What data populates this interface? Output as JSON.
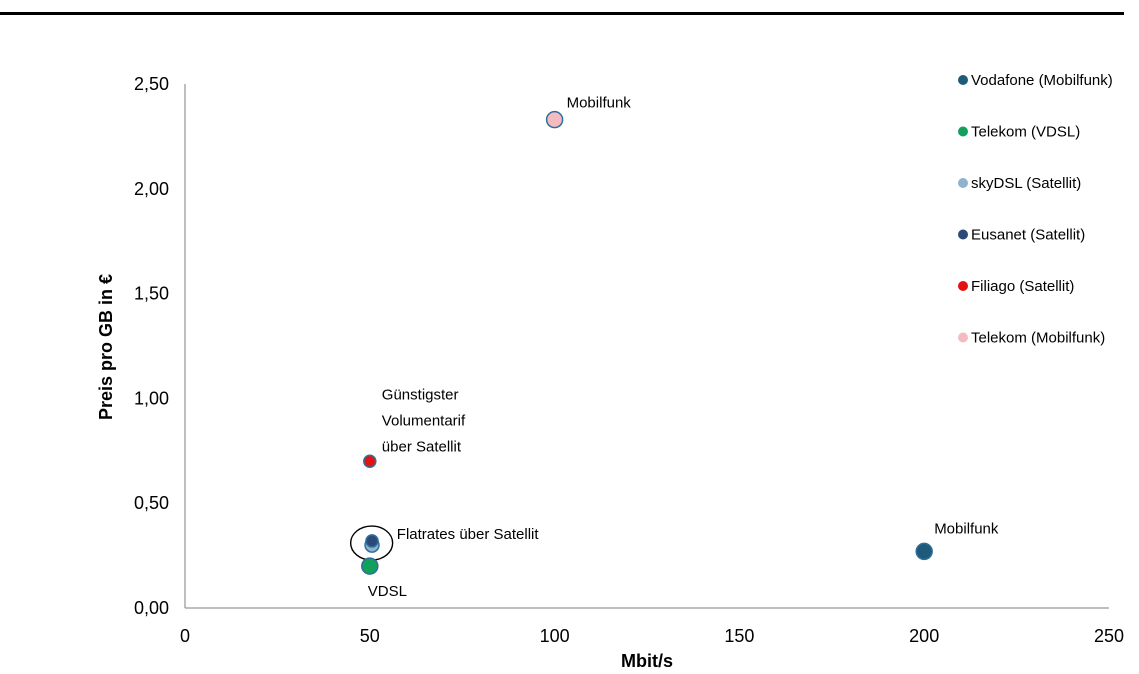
{
  "chart_data": {
    "type": "scatter",
    "xlabel": "Mbit/s",
    "ylabel": "Preis pro GB in €",
    "xlim": [
      0,
      250
    ],
    "ylim": [
      0,
      2.5
    ],
    "x_ticks": [
      "0",
      "50",
      "100",
      "150",
      "200",
      "250"
    ],
    "y_ticks": [
      "0,00",
      "0,50",
      "1,00",
      "1,50",
      "2,00",
      "2,50"
    ],
    "grid": false,
    "legend_position": "right",
    "series": [
      {
        "name": "Vodafone (Mobilfunk)",
        "color": "#1f5a7a",
        "points": [
          {
            "x": 200,
            "y": 0.27
          }
        ]
      },
      {
        "name": "Telekom (VDSL)",
        "color": "#12a05a",
        "points": [
          {
            "x": 50,
            "y": 0.2
          }
        ]
      },
      {
        "name": "skyDSL (Satellit)",
        "color": "#8fb3cf",
        "points": [
          {
            "x": 50,
            "y": 0.3
          }
        ]
      },
      {
        "name": "Eusanet (Satellit)",
        "color": "#2c4a78",
        "points": [
          {
            "x": 50,
            "y": 0.32
          }
        ]
      },
      {
        "name": "Filiago (Satellit)",
        "color": "#e51212",
        "points": [
          {
            "x": 50,
            "y": 0.7
          }
        ]
      },
      {
        "name": "Telekom (Mobilfunk)",
        "color": "#f4bcc0",
        "points": [
          {
            "x": 100,
            "y": 2.33
          }
        ]
      }
    ],
    "annotations": [
      {
        "name": "mobilfunk-telekom",
        "lines": [
          "Mobilfunk"
        ],
        "x": 100,
        "y": 2.33
      },
      {
        "name": "guenstigster-volumentarif",
        "lines": [
          "Günstigster",
          "Volumentarif",
          "über Satellit"
        ],
        "x": 50,
        "y": 0.7
      },
      {
        "name": "flatrates-satellit",
        "lines": [
          "Flatrates über Satellit"
        ],
        "x": 50,
        "y": 0.31
      },
      {
        "name": "vdsl",
        "lines": [
          "VDSL"
        ],
        "x": 50,
        "y": 0.2
      },
      {
        "name": "mobilfunk-vodafone",
        "lines": [
          "Mobilfunk"
        ],
        "x": 200,
        "y": 0.27
      }
    ]
  }
}
